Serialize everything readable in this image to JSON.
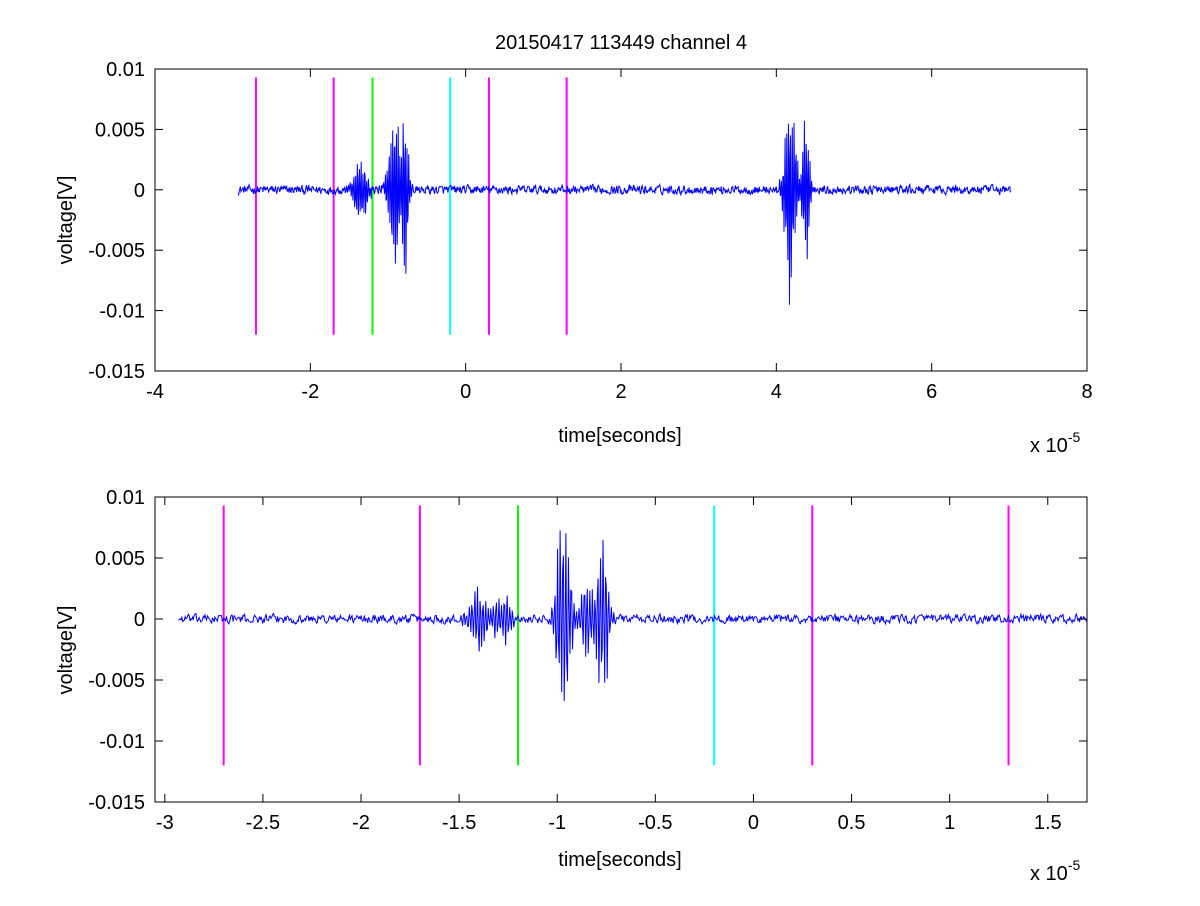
{
  "figure": {
    "title": "20150417 113449 channel 4"
  },
  "chart_data": [
    {
      "type": "line",
      "xlabel": "time[seconds]",
      "ylabel": "voltage[V]",
      "x_exponent_label": "x 10",
      "x_exponent": "-5",
      "xlim": [
        -4,
        8
      ],
      "ylim": [
        -0.015,
        0.01
      ],
      "x_ticks": [
        -4,
        -2,
        0,
        2,
        4,
        6,
        8
      ],
      "x_tick_labels": [
        "-4",
        "-2",
        "0",
        "2",
        "4",
        "6",
        "8"
      ],
      "y_ticks": [
        0.01,
        0.005,
        0,
        -0.005,
        -0.01,
        -0.015
      ],
      "y_tick_labels": [
        "0.01",
        "0.005",
        "0",
        "-0.005",
        "-0.01",
        "-0.015"
      ],
      "grid": false,
      "signal": {
        "color": "#0000ff",
        "x_start": -2.93,
        "x_end": 7.02,
        "baseline_noise": 0.0004,
        "bursts": [
          {
            "x": -1.35,
            "width": 0.15,
            "amplitude": 0.003
          },
          {
            "x": -0.92,
            "width": 0.12,
            "amplitude": 0.0085
          },
          {
            "x": -0.78,
            "width": 0.08,
            "amplitude": 0.008
          },
          {
            "x": 4.18,
            "width": 0.12,
            "amplitude": 0.0105
          },
          {
            "x": 4.38,
            "width": 0.08,
            "amplitude": 0.0068
          }
        ]
      },
      "markers": [
        {
          "x": -2.7,
          "color": "#ff00ff"
        },
        {
          "x": -1.7,
          "color": "#ff00ff"
        },
        {
          "x": -1.2,
          "color": "#00ff00"
        },
        {
          "x": -0.2,
          "color": "#00ffff"
        },
        {
          "x": 0.3,
          "color": "#ff00ff"
        },
        {
          "x": 1.3,
          "color": "#ff00ff"
        }
      ],
      "marker_ymin": -0.012,
      "marker_ymax": 0.0093
    },
    {
      "type": "line",
      "xlabel": "time[seconds]",
      "ylabel": "voltage[V]",
      "x_exponent_label": "x 10",
      "x_exponent": "-5",
      "xlim": [
        -3.05,
        1.7
      ],
      "ylim": [
        -0.015,
        0.01
      ],
      "x_ticks": [
        -3,
        -2.5,
        -2,
        -1.5,
        -1,
        -0.5,
        0,
        0.5,
        1,
        1.5
      ],
      "x_tick_labels": [
        "-3",
        "-2.5",
        "-2",
        "-1.5",
        "-1",
        "-0.5",
        "0",
        "0.5",
        "1",
        "1.5"
      ],
      "y_ticks": [
        0.01,
        0.005,
        0,
        -0.005,
        -0.01,
        -0.015
      ],
      "y_tick_labels": [
        "0.01",
        "0.005",
        "0",
        "-0.005",
        "-0.01",
        "-0.015"
      ],
      "grid": false,
      "signal": {
        "color": "#0000ff",
        "x_start": -2.93,
        "x_end": 1.7,
        "baseline_noise": 0.0004,
        "bursts": [
          {
            "x": -1.4,
            "width": 0.08,
            "amplitude": 0.003
          },
          {
            "x": -1.28,
            "width": 0.08,
            "amplitude": 0.0025
          },
          {
            "x": -0.97,
            "width": 0.06,
            "amplitude": 0.0105
          },
          {
            "x": -0.85,
            "width": 0.05,
            "amplitude": 0.004
          },
          {
            "x": -0.77,
            "width": 0.05,
            "amplitude": 0.0085
          }
        ]
      },
      "markers": [
        {
          "x": -2.7,
          "color": "#ff00ff"
        },
        {
          "x": -1.7,
          "color": "#ff00ff"
        },
        {
          "x": -1.2,
          "color": "#00ff00"
        },
        {
          "x": -0.2,
          "color": "#00ffff"
        },
        {
          "x": 0.3,
          "color": "#ff00ff"
        },
        {
          "x": 1.3,
          "color": "#ff00ff"
        }
      ],
      "marker_ymin": -0.012,
      "marker_ymax": 0.0093
    }
  ]
}
